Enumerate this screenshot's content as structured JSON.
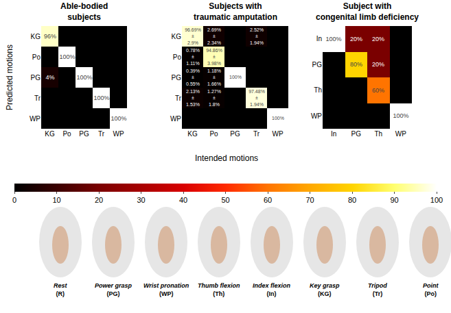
{
  "chart_data": [
    {
      "type": "heatmap",
      "title": "Able-bodied\nsubjects",
      "categories": [
        "KG",
        "Po",
        "PG",
        "Tr",
        "WP"
      ],
      "cells": [
        [
          96,
          0,
          0,
          0,
          0
        ],
        [
          0,
          100,
          0,
          0,
          0
        ],
        [
          4,
          0,
          100,
          0,
          0
        ],
        [
          0,
          0,
          0,
          100,
          0
        ],
        [
          0,
          0,
          0,
          0,
          100
        ]
      ],
      "cell_labels": [
        [
          "96%",
          null,
          null,
          null,
          null
        ],
        [
          null,
          "100%",
          null,
          null,
          null
        ],
        [
          "4%",
          null,
          "100%",
          null,
          null
        ],
        [
          null,
          null,
          null,
          "100%",
          null
        ],
        [
          null,
          null,
          null,
          null,
          "100%"
        ]
      ]
    },
    {
      "type": "heatmap",
      "title": "Subjects with\ntraumatic amputation",
      "categories": [
        "KG",
        "Po",
        "PG",
        "Tr",
        "WP"
      ],
      "cells": [
        [
          96.69,
          2.69,
          0,
          2.52,
          0
        ],
        [
          0.78,
          94.86,
          0,
          0,
          0
        ],
        [
          0.39,
          1.18,
          100,
          0,
          0
        ],
        [
          2.13,
          1.27,
          0,
          97.48,
          0
        ],
        [
          0,
          0,
          0,
          0,
          100
        ]
      ],
      "cell_labels": [
        [
          "96.69%\n±\n2.9%",
          "2.69%\n±\n2.34%",
          null,
          "2.52%\n±\n1.94%",
          null
        ],
        [
          "0.78%\n±\n1.11%",
          "94.86%\n±\n3.98%",
          null,
          null,
          null
        ],
        [
          "0.39%\n±\n0.55%",
          "1.18%\n±\n1.66%",
          "100%",
          null,
          null
        ],
        [
          "2.13%\n±\n1.53%",
          "1.27%\n±\n1.8%",
          null,
          "97.48%\n±\n1.94%",
          null
        ],
        [
          null,
          null,
          null,
          null,
          "100%"
        ]
      ]
    },
    {
      "type": "heatmap",
      "title": "Subject with\ncongenital limb deficiency",
      "categories": [
        "In",
        "PG",
        "Th",
        "WP"
      ],
      "cells": [
        [
          100,
          20,
          20,
          0
        ],
        [
          0,
          80,
          20,
          0
        ],
        [
          0,
          0,
          60,
          0
        ],
        [
          0,
          0,
          0,
          100
        ]
      ],
      "cell_labels": [
        [
          "100%",
          "20%",
          "20%",
          null
        ],
        [
          null,
          "80%",
          "20%",
          null
        ],
        [
          null,
          null,
          "60%",
          null
        ],
        [
          null,
          null,
          null,
          "100%"
        ]
      ]
    }
  ],
  "x_label": "Intended motions",
  "y_label": "Predicted motions",
  "colorbar": {
    "range": [
      0,
      100
    ],
    "ticks": [
      0,
      10,
      20,
      30,
      40,
      50,
      60,
      70,
      80,
      90,
      100
    ]
  },
  "motions": [
    {
      "name": "Rest",
      "label": "(R)"
    },
    {
      "name": "Power grasp",
      "label": "(PG)"
    },
    {
      "name": "Wrist pronation",
      "label": "(WP)"
    },
    {
      "name": "Thumb flexion",
      "label": "(Th)"
    },
    {
      "name": "Index flexion",
      "label": "(In)"
    },
    {
      "name": "Key grasp",
      "label": "(KG)"
    },
    {
      "name": "Tripod",
      "label": "(Tr)"
    },
    {
      "name": "Point",
      "label": "(Po)"
    }
  ]
}
